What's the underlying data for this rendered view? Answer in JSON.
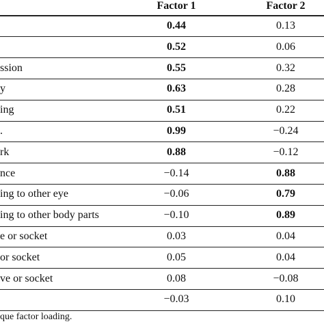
{
  "header": {
    "factor_1": "Factor 1",
    "factor_2": "Factor 2"
  },
  "table": {
    "rows": [
      {
        "factor_1": "0.44",
        "factor_2": "0.13"
      },
      {
        "factor_1": "0.52",
        "factor_2": "0.06"
      },
      {
        "label": "ssion",
        "factor_1": "0.55",
        "factor_2": "0.32"
      },
      {
        "label": "y",
        "factor_1": "0.63",
        "factor_2": "0.28"
      },
      {
        "label": "ing",
        "factor_1": "0.51",
        "factor_2": "0.22"
      },
      {
        "label": ".",
        "factor_1": "0.99",
        "factor_2": "−0.24"
      },
      {
        "label": "rk",
        "factor_1": "0.88",
        "factor_2": "−0.12"
      },
      {
        "label": "nce",
        "factor_1": "−0.14",
        "factor_2": "0.88"
      },
      {
        "label": "ing to other eye",
        "factor_1": "−0.06",
        "factor_2": "0.79"
      },
      {
        "label": "ing to other body parts",
        "factor_1": "−0.10",
        "factor_2": "0.89"
      },
      {
        "label": "e or socket",
        "factor_1": "0.03",
        "factor_2": "0.04"
      },
      {
        "label": " or socket",
        "factor_1": "0.05",
        "factor_2": "0.04"
      },
      {
        "label": "ve or socket",
        "factor_1": "0.08",
        "factor_2": "−0.08"
      },
      {
        "factor_1": "−0.03",
        "factor_2": "0.10"
      }
    ]
  },
  "footnote": "que factor loading."
}
